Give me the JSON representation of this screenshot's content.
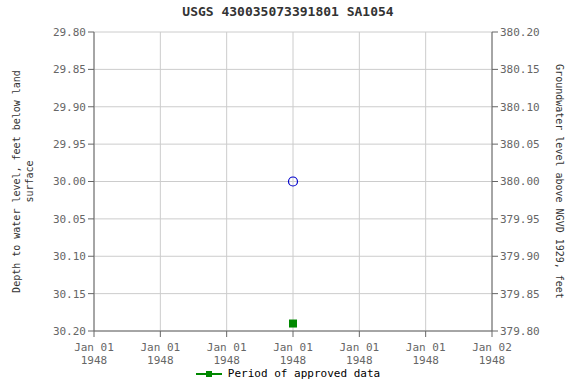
{
  "chart_data": {
    "type": "scatter",
    "title": "USGS 430035073391801 SA1054",
    "ylabel": "Depth to water level, feet below land\nsurface",
    "y2label": "Groundwater level above NGVD 1929, feet",
    "categories": [
      "Jan 01\n1948",
      "Jan 01\n1948",
      "Jan 01\n1948",
      "Jan 01\n1948",
      "Jan 01\n1948",
      "Jan 01\n1948",
      "Jan 02\n1948"
    ],
    "series": [
      {
        "color": "#0000cc",
        "marker": "open_circle",
        "values": [
          null,
          null,
          null,
          30.0,
          null,
          null,
          null
        ]
      },
      {
        "name": "Period of approved data",
        "color": "#008800",
        "marker": "square",
        "values": [
          null,
          null,
          null,
          30.19,
          null,
          null,
          null
        ]
      }
    ],
    "ylim": [
      30.2,
      29.8
    ],
    "yticks": [
      {
        "value": 29.8,
        "label": "29.80"
      },
      29.85,
      {
        "value": 29.9,
        "label": "29.90"
      },
      29.95,
      {
        "value": 30.0,
        "label": "30.00"
      },
      30.05,
      {
        "value": 30.1,
        "label": "30.10"
      },
      30.15,
      {
        "value": 30.2,
        "label": "30.20"
      }
    ],
    "y2lim": [
      379.8,
      380.2
    ],
    "y2ticks": [
      {
        "value": 379.8,
        "label": "379.80"
      },
      379.85,
      {
        "value": 379.9,
        "label": "379.90"
      },
      379.95,
      {
        "value": 380.0,
        "label": "380.00"
      },
      380.05,
      {
        "value": 380.1,
        "label": "380.10"
      },
      380.15,
      {
        "value": 380.2,
        "label": "380.20"
      }
    ],
    "grid": true,
    "legend": "bottom"
  }
}
